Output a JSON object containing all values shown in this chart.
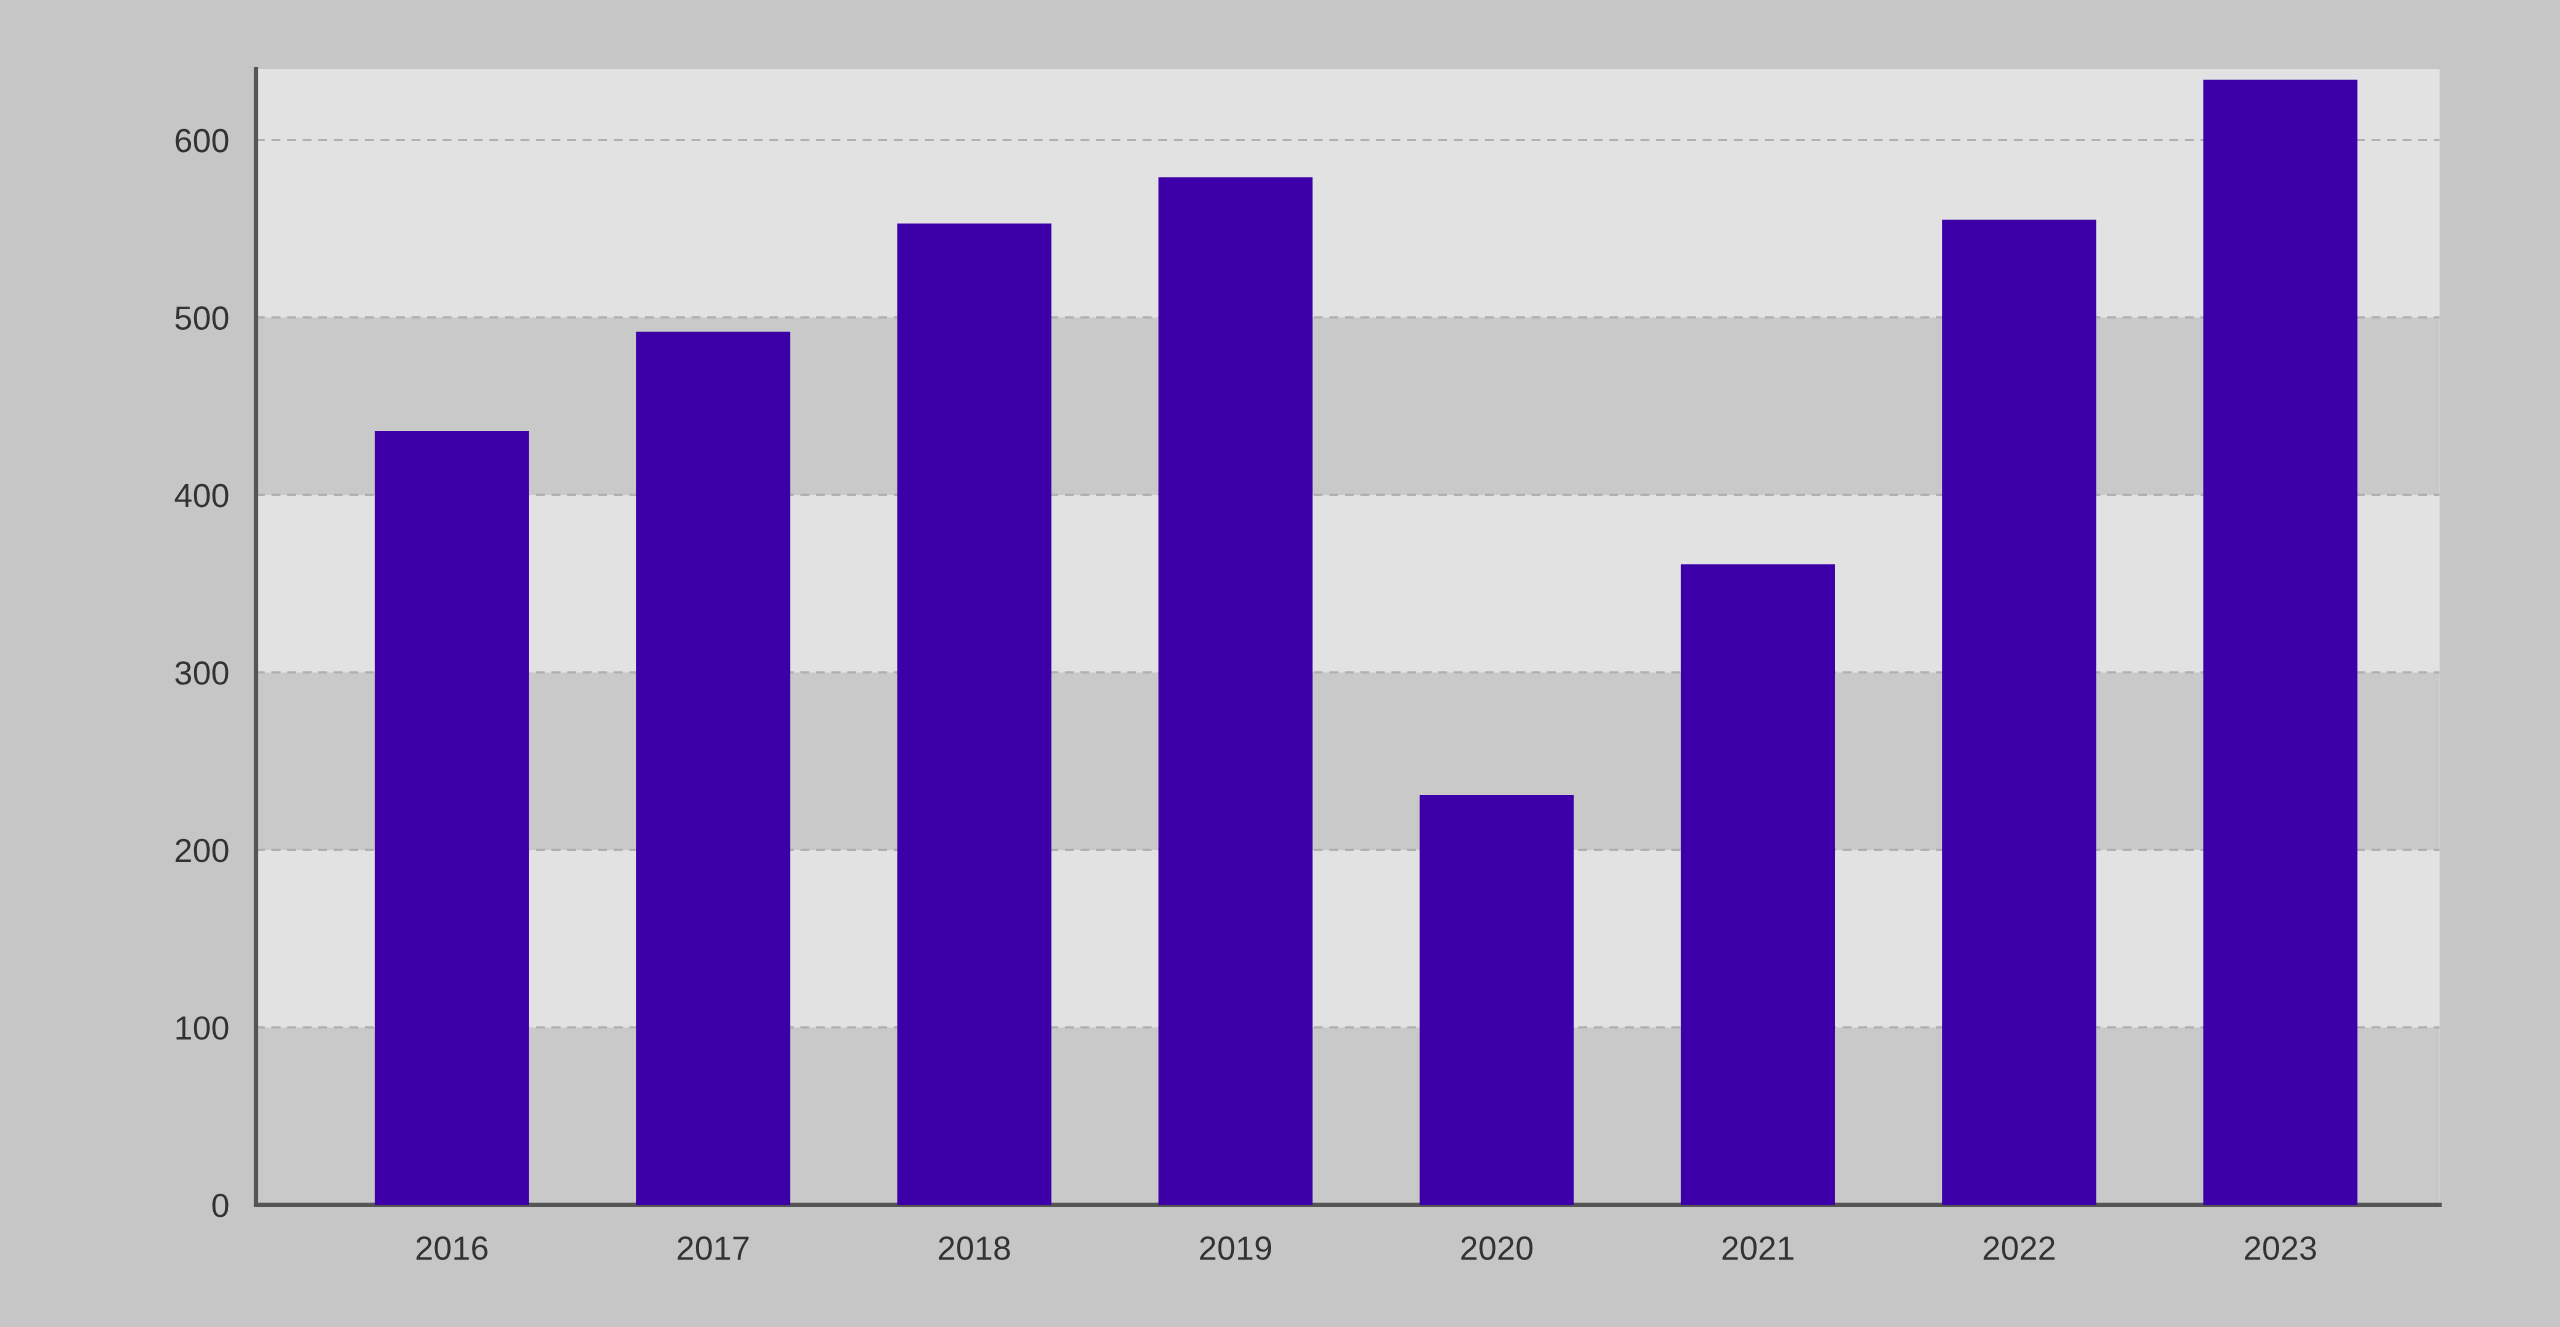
{
  "chart_data": {
    "type": "bar",
    "categories": [
      "2016",
      "2017",
      "2018",
      "2019",
      "2020",
      "2021",
      "2022",
      "2023"
    ],
    "values": [
      436,
      492,
      553,
      579,
      231,
      361,
      555,
      634
    ],
    "color": "#3d00a8",
    "ylim": [
      0,
      640
    ],
    "yticks": [
      0,
      100,
      200,
      300,
      400,
      500,
      600
    ],
    "grid": "y",
    "line_style": "dashed",
    "bands": [
      {
        "axis": "y",
        "from": 0,
        "to": 100,
        "color": "#c9c9c9"
      },
      {
        "axis": "y",
        "from": 200,
        "to": 300,
        "color": "#c9c9c9"
      },
      {
        "axis": "y",
        "from": 400,
        "to": 500,
        "color": "#c9c9c9"
      }
    ]
  }
}
